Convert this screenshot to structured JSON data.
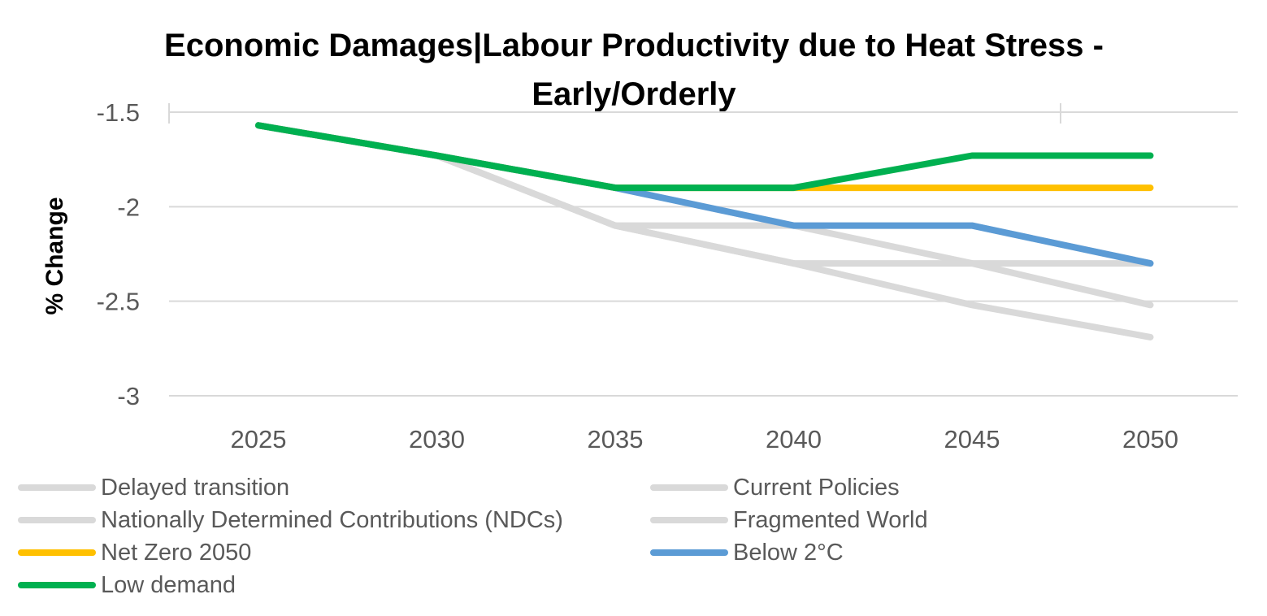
{
  "chart_data": {
    "type": "line",
    "title": "Economic Damages|Labour Productivity due to Heat Stress - Early/Orderly",
    "ylabel": "% Change",
    "xlabel": "",
    "x": [
      "2025",
      "2030",
      "2035",
      "2040",
      "2045",
      "2050"
    ],
    "ylim": [
      -3,
      -1.5
    ],
    "yticks": [
      "-1.5",
      "-2",
      "-2.5",
      "-3"
    ],
    "grid": true,
    "legend_position": "bottom",
    "series": [
      {
        "name": "Delayed transition",
        "color": "#d9d9d9",
        "values": [
          -1.57,
          -1.73,
          -1.9,
          -2.1,
          -2.1,
          -2.3
        ]
      },
      {
        "name": "Current Policies",
        "color": "#d9d9d9",
        "values": [
          -1.57,
          -1.73,
          -2.1,
          -2.3,
          -2.52,
          -2.69
        ]
      },
      {
        "name": "Nationally Determined Contributions (NDCs)",
        "color": "#d9d9d9",
        "values": [
          -1.57,
          -1.73,
          -2.1,
          -2.1,
          -2.3,
          -2.52
        ]
      },
      {
        "name": "Fragmented World",
        "color": "#d9d9d9",
        "values": [
          -1.57,
          -1.73,
          -2.1,
          -2.3,
          -2.3,
          -2.3
        ]
      },
      {
        "name": "Net Zero 2050",
        "color": "#ffc000",
        "values": [
          -1.57,
          -1.73,
          -1.9,
          -1.9,
          -1.9,
          -1.9
        ]
      },
      {
        "name": "Below 2°C",
        "color": "#5b9bd5",
        "values": [
          -1.57,
          -1.73,
          -1.9,
          -2.1,
          -2.1,
          -2.3
        ]
      },
      {
        "name": "Low demand",
        "color": "#00b050",
        "values": [
          -1.57,
          -1.73,
          -1.9,
          -1.9,
          -1.73,
          -1.73
        ]
      }
    ]
  }
}
